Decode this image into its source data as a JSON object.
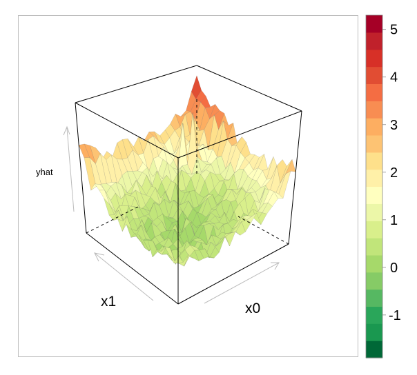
{
  "chart_data": {
    "type": "surface3d",
    "title": "",
    "x_axis_label": "x0",
    "y_axis_label": "x1",
    "z_axis_label": "yhat",
    "zlim": [
      -1.9,
      5.3
    ],
    "description_of_shape": "U-shaped noisy surface: high (approx 3-4) along the back-left and back-right edges, low (approx 0 to -0.5) near the front center",
    "corner_heights": {
      "back_left": 3.8,
      "back_right": 3.2,
      "front_left": 1.0,
      "front_right": 1.2,
      "center": 0.2
    },
    "colorbar": {
      "ticks": [
        5,
        4,
        3,
        2,
        1,
        0,
        -1
      ],
      "tick_labels": [
        "5",
        "4",
        "3",
        "2",
        "1",
        "0",
        "-1"
      ],
      "min": -1.9,
      "max": 5.3,
      "colors": [
        "#006837",
        "#1a9850",
        "#2aa65a",
        "#56b862",
        "#86cb66",
        "#a6d96a",
        "#c1e57a",
        "#d9ef8b",
        "#ecf7a8",
        "#ffffbf",
        "#fff0a8",
        "#fee08b",
        "#fdc373",
        "#fdae61",
        "#f88d52",
        "#f46d43",
        "#e14d33",
        "#d73027",
        "#c0212b",
        "#a50026"
      ]
    }
  }
}
